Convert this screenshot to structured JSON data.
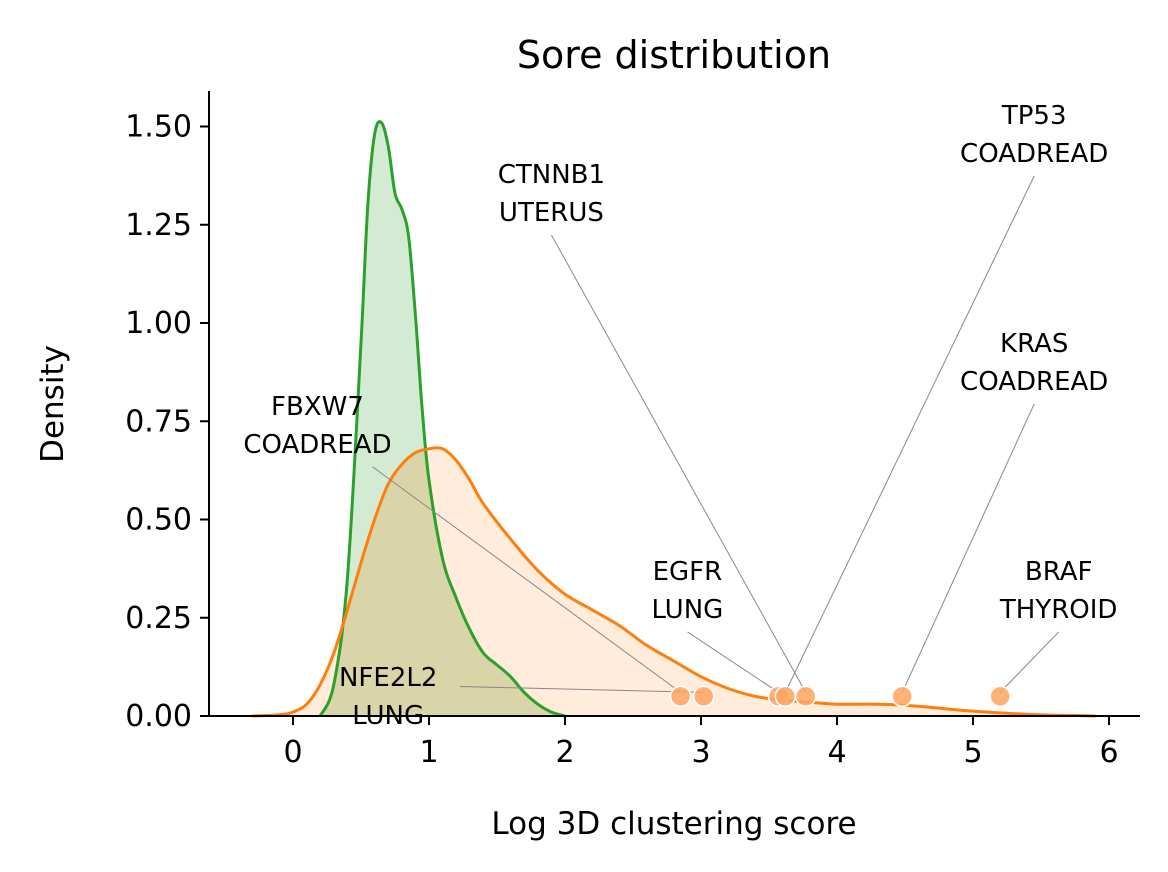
{
  "chart_data": {
    "type": "area",
    "title": "Sore distribution",
    "xlabel": "Log 3D clustering score",
    "ylabel": "Density",
    "xlim": [
      -0.6,
      6.2
    ],
    "ylim": [
      0,
      1.6
    ],
    "xticks": [
      "0",
      "1",
      "2",
      "3",
      "4",
      "5",
      "6"
    ],
    "yticks": [
      "0.00",
      "0.25",
      "0.50",
      "0.75",
      "1.00",
      "1.25",
      "1.50"
    ],
    "grid": false,
    "colors": {
      "green": "#2ca02c",
      "green_fill": "#d4ebd3",
      "orange": "#ff7f0e",
      "orange_fill": "#ffe4cc",
      "point": "#ffa560"
    },
    "series": [
      {
        "color": "green",
        "x": [
          0.2,
          0.3,
          0.4,
          0.5,
          0.55,
          0.6,
          0.65,
          0.7,
          0.75,
          0.8,
          0.85,
          0.9,
          0.95,
          1.0,
          1.1,
          1.2,
          1.3,
          1.4,
          1.5,
          1.6,
          1.7,
          1.8,
          1.9,
          2.0
        ],
        "y": [
          0.0,
          0.08,
          0.35,
          0.95,
          1.3,
          1.48,
          1.51,
          1.45,
          1.33,
          1.29,
          1.22,
          1.02,
          0.78,
          0.6,
          0.4,
          0.3,
          0.22,
          0.16,
          0.13,
          0.1,
          0.06,
          0.03,
          0.01,
          0.0
        ]
      },
      {
        "color": "orange",
        "x": [
          -0.3,
          -0.1,
          0.0,
          0.1,
          0.2,
          0.3,
          0.4,
          0.5,
          0.6,
          0.7,
          0.8,
          0.9,
          1.0,
          1.1,
          1.2,
          1.3,
          1.4,
          1.6,
          1.8,
          2.0,
          2.2,
          2.4,
          2.6,
          2.8,
          3.0,
          3.2,
          3.4,
          3.6,
          3.8,
          4.0,
          4.3,
          4.6,
          4.9,
          5.2,
          5.5,
          5.8,
          5.9
        ],
        "y": [
          0.0,
          0.003,
          0.01,
          0.03,
          0.08,
          0.16,
          0.27,
          0.39,
          0.5,
          0.59,
          0.64,
          0.67,
          0.68,
          0.68,
          0.65,
          0.6,
          0.54,
          0.45,
          0.37,
          0.31,
          0.27,
          0.23,
          0.18,
          0.14,
          0.1,
          0.07,
          0.05,
          0.04,
          0.035,
          0.03,
          0.03,
          0.025,
          0.015,
          0.008,
          0.003,
          0.001,
          0.0
        ]
      }
    ],
    "points": [
      {
        "x": 2.85,
        "y": 0.05
      },
      {
        "x": 3.02,
        "y": 0.05
      },
      {
        "x": 3.57,
        "y": 0.05
      },
      {
        "x": 3.62,
        "y": 0.05
      },
      {
        "x": 3.77,
        "y": 0.05
      },
      {
        "x": 4.48,
        "y": 0.05
      },
      {
        "x": 5.2,
        "y": 0.05
      }
    ],
    "annotations": [
      {
        "lines": [
          "TP53",
          "COADREAD"
        ],
        "text_x": 5.45,
        "text_y": 1.43,
        "point_x": 3.62,
        "point_y": 0.05
      },
      {
        "lines": [
          "CTNNB1",
          "UTERUS"
        ],
        "text_x": 1.9,
        "text_y": 1.28,
        "point_x": 3.77,
        "point_y": 0.05
      },
      {
        "lines": [
          "KRAS",
          "COADREAD"
        ],
        "text_x": 5.45,
        "text_y": 0.85,
        "point_x": 4.48,
        "point_y": 0.05
      },
      {
        "lines": [
          "FBXW7",
          "COADREAD"
        ],
        "text_x": 0.18,
        "text_y": 0.69,
        "point_x": 2.85,
        "point_y": 0.05
      },
      {
        "lines": [
          "EGFR",
          "LUNG"
        ],
        "text_x": 2.9,
        "text_y": 0.27,
        "point_x": 3.57,
        "point_y": 0.05
      },
      {
        "lines": [
          "BRAF",
          "THYROID"
        ],
        "text_x": 5.63,
        "text_y": 0.27,
        "point_x": 5.2,
        "point_y": 0.05
      },
      {
        "lines": [
          "NFE2L2",
          "LUNG"
        ],
        "text_x": 0.7,
        "text_y": 0.0,
        "point_x": 3.02,
        "point_y": 0.05
      }
    ]
  }
}
